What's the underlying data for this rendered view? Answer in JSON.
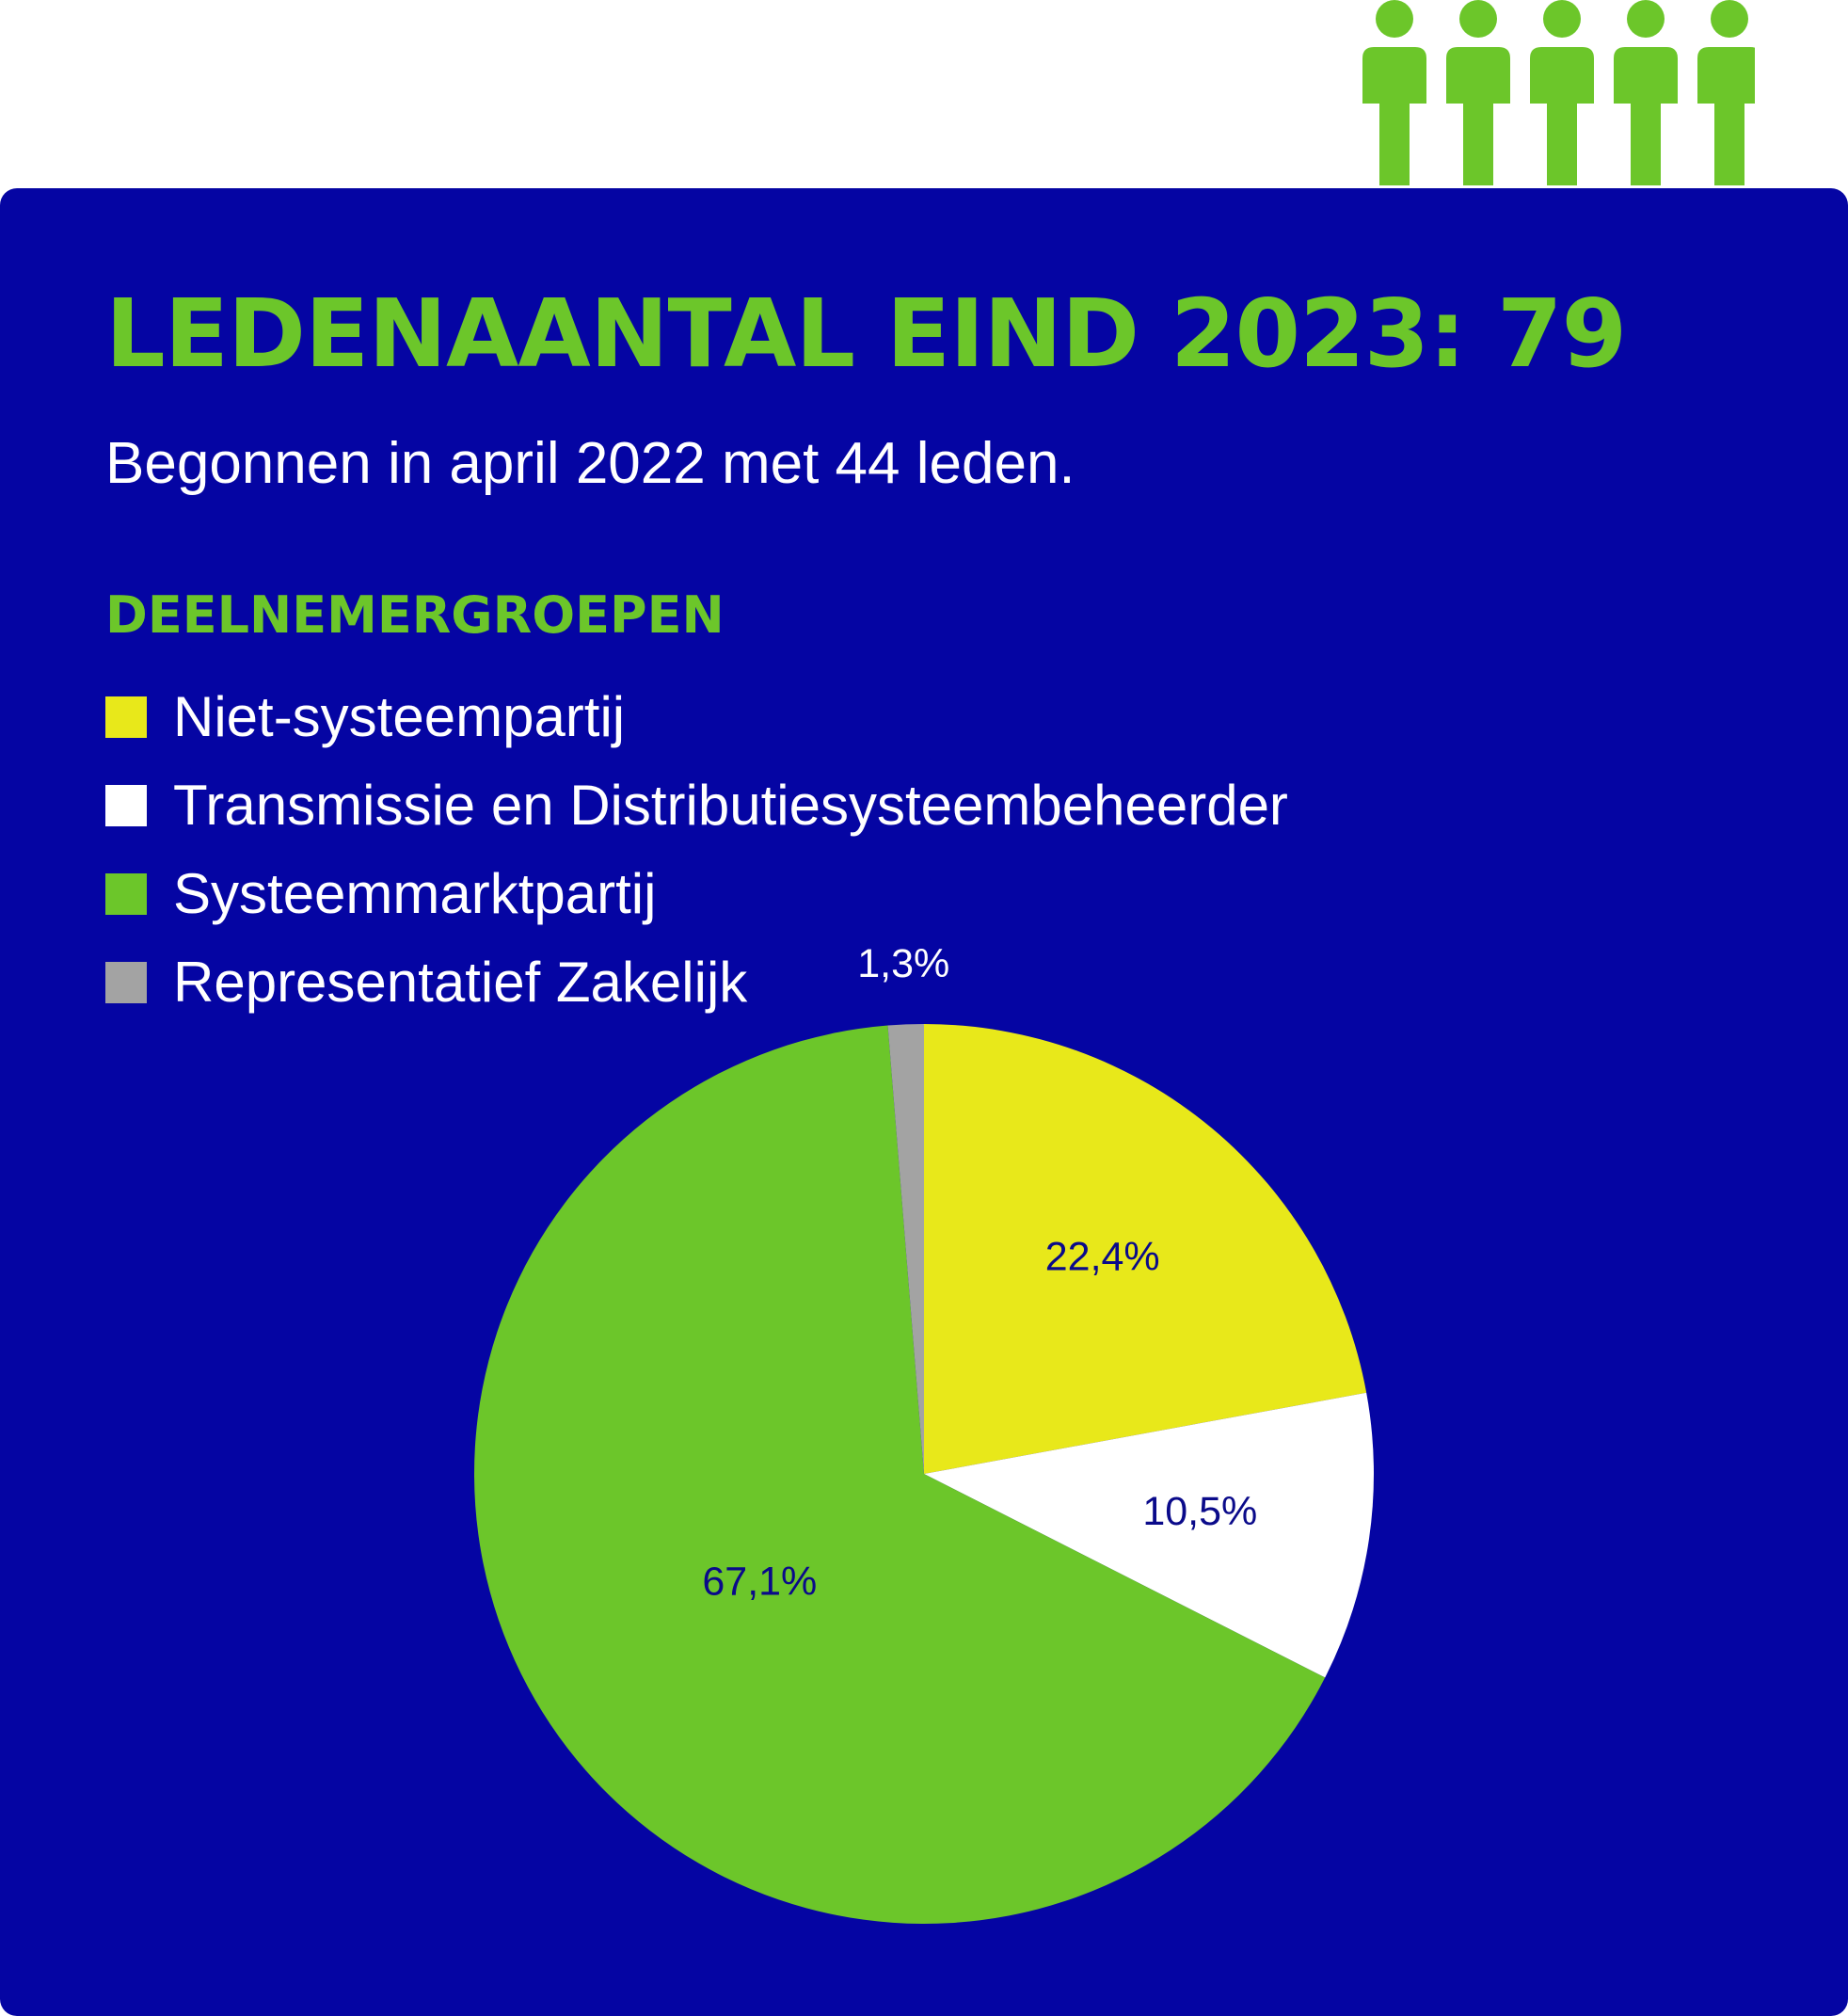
{
  "header": {
    "title": "LEDENAANTAL EIND 2023: 79",
    "subtitle": "Begonnen in april 2022 met 44 leden.",
    "people_icon": "person-icon",
    "people_count": 5
  },
  "legend": {
    "title": "DEELNEMERGROEPEN",
    "items": [
      {
        "label": "Niet-systeempartij",
        "color": "#e8e81a"
      },
      {
        "label": "Transmissie en Distributiesysteembeheerder",
        "color": "#ffffff"
      },
      {
        "label": "Systeemmarktpartij",
        "color": "#6cc62a"
      },
      {
        "label": "Representatief Zakelijk",
        "color": "#a3a3a3"
      }
    ]
  },
  "colors": {
    "panel_background": "#0505a3",
    "accent": "#6cc62a",
    "label_text": "#0a0a8a"
  },
  "chart_data": {
    "type": "pie",
    "title": "DEELNEMERGROEPEN",
    "legend_position": "top-left",
    "slices": [
      {
        "name": "Niet-systeempartij",
        "value": 22.4,
        "label": "22,4%",
        "color": "#e8e81a"
      },
      {
        "name": "Transmissie en Distributiesysteembeheerder",
        "value": 10.5,
        "label": "10,5%",
        "color": "#ffffff"
      },
      {
        "name": "Systeemmarktpartij",
        "value": 67.1,
        "label": "67,1%",
        "color": "#6cc62a"
      },
      {
        "name": "Representatief Zakelijk",
        "value": 1.3,
        "label": "1,3%",
        "color": "#a3a3a3"
      }
    ]
  }
}
